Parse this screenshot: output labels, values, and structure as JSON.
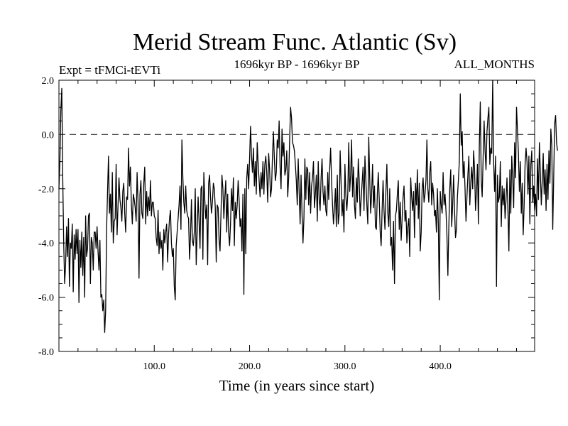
{
  "chart_data": {
    "type": "line",
    "title": "Merid Stream Func. Atlantic (Sv)",
    "left_label": "Expt = tFMCi-tEVTi",
    "center_label": "1696kyr BP - 1696kyr BP",
    "right_label": "ALL_MONTHS",
    "xlabel": "Time (in years since start)",
    "ylabel": "",
    "xlim": [
      0,
      499
    ],
    "ylim": [
      -8.0,
      2.0
    ],
    "x_ticks": [
      100,
      200,
      300,
      400
    ],
    "x_tick_labels": [
      "100.0",
      "200.0",
      "300.0",
      "400.0"
    ],
    "y_ticks": [
      2.0,
      0.0,
      -2.0,
      -4.0,
      -6.0,
      -8.0
    ],
    "y_tick_labels": [
      "2.0",
      "0.0",
      "-2.0",
      "-4.0",
      "-6.0",
      "-8.0"
    ],
    "reference_line": {
      "y": 0.0,
      "style": "dashed"
    },
    "series": [
      {
        "name": "Merid Stream Func. Atlantic",
        "x_start": 0,
        "x_step": 1,
        "values": [
          -2.0,
          -1.0,
          0.9,
          1.7,
          -1.6,
          -4.0,
          -5.5,
          -4.8,
          -3.4,
          -4.5,
          -3.1,
          -5.6,
          -4.0,
          -4.2,
          -3.3,
          -5.8,
          -3.7,
          -4.6,
          -3.5,
          -4.4,
          -3.5,
          -6.2,
          -3.9,
          -4.9,
          -3.6,
          -5.2,
          -3.8,
          -6.0,
          -3.0,
          -4.5,
          -4.2,
          -3.0,
          -2.9,
          -5.5,
          -3.8,
          -4.0,
          -5.0,
          -3.6,
          -3.6,
          -4.2,
          -3.4,
          -4.3,
          -5.0,
          -3.9,
          -6.0,
          -5.9,
          -6.5,
          -6.1,
          -7.3,
          -6.5,
          -3.5,
          -2.1,
          -0.8,
          -2.9,
          -2.2,
          -3.6,
          -1.4,
          -4.0,
          -3.2,
          -3.1,
          -1.1,
          -3.7,
          -2.6,
          -1.6,
          -2.4,
          -2.7,
          -3.2,
          -2.1,
          -1.8,
          -2.9,
          -3.6,
          -2.3,
          -2.4,
          -0.5,
          -1.9,
          -1.2,
          -2.6,
          -3.3,
          -2.2,
          -2.4,
          -2.7,
          -3.2,
          -1.4,
          -2.5,
          -5.3,
          -2.2,
          -1.7,
          -2.9,
          -3.1,
          -1.8,
          -1.2,
          -3.3,
          -2.1,
          -3.0,
          -2.3,
          -2.8,
          -1.7,
          -3.0,
          -2.5,
          -2.5,
          -3.0,
          -3.1,
          -3.8,
          -4.1,
          -2.8,
          -4.4,
          -3.6,
          -4.2,
          -3.9,
          -5.0,
          -3.5,
          -4.0,
          -3.6,
          -3.3,
          -4.7,
          -3.7,
          -3.1,
          -2.8,
          -4.0,
          -4.5,
          -4.2,
          -5.6,
          -6.1,
          -4.1,
          -3.6,
          -3.1,
          -2.6,
          -1.9,
          -3.5,
          -0.2,
          -1.6,
          -2.5,
          -2.9,
          -1.9,
          -2.8,
          -3.0,
          -3.1,
          -4.6,
          -3.8,
          -2.4,
          -3.9,
          -4.1,
          -3.6,
          -2.0,
          -4.8,
          -3.6,
          -2.3,
          -3.2,
          -4.2,
          -2.0,
          -1.9,
          -4.6,
          -1.4,
          -2.4,
          -3.1,
          -2.6,
          -4.8,
          -1.8,
          -1.5,
          -2.3,
          -2.9,
          -2.5,
          -1.8,
          -2.0,
          -2.7,
          -4.7,
          -2.6,
          -2.7,
          -3.9,
          -4.3,
          -2.9,
          -1.5,
          -2.0,
          -3.1,
          -2.3,
          -1.7,
          -3.6,
          -2.2,
          -3.6,
          -4.1,
          -3.3,
          -2.0,
          -2.8,
          -1.6,
          -4.1,
          -2.5,
          -3.1,
          -2.6,
          -1.7,
          -2.4,
          -3.4,
          -3.1,
          -4.3,
          -2.2,
          -5.9,
          -2.0,
          -4.4,
          -1.6,
          -1.1,
          -2.0,
          -0.9,
          0.3,
          -0.8,
          -1.4,
          -0.5,
          -1.9,
          -1.0,
          -2.2,
          -0.3,
          -1.1,
          -1.7,
          -2.3,
          -1.4,
          -2.0,
          -1.0,
          -2.2,
          -1.1,
          -0.8,
          -1.4,
          -2.5,
          -0.7,
          -1.3,
          -2.3,
          -2.0,
          -0.8,
          0.1,
          -0.9,
          -1.7,
          -1.4,
          -0.2,
          -0.5,
          0.5,
          -1.2,
          -2.0,
          0.2,
          -0.8,
          -0.3,
          -1.5,
          -1.3,
          -0.6,
          -2.3,
          -1.6,
          -0.2,
          1.0,
          0.6,
          -0.3,
          -0.4,
          -0.6,
          -1.1,
          -1.7,
          -2.6,
          -0.9,
          -2.1,
          -3.3,
          -1.5,
          -2.9,
          -4.0,
          -3.1,
          -0.9,
          -2.4,
          -1.2,
          -1.3,
          -2.6,
          -1.4,
          -2.9,
          -1.9,
          -1.6,
          -1.0,
          -2.7,
          -2.2,
          -1.5,
          -3.2,
          -1.0,
          -2.4,
          -2.8,
          -1.6,
          -0.9,
          -2.1,
          -2.6,
          -1.9,
          -2.8,
          -3.0,
          -1.4,
          -2.4,
          -1.3,
          -0.5,
          -1.7,
          -2.6,
          -3.3,
          -2.7,
          -2.0,
          -3.4,
          -1.5,
          -3.3,
          -2.9,
          -0.6,
          -1.8,
          -3.0,
          -2.4,
          -3.6,
          -1.1,
          -2.3,
          -2.8,
          -2.2,
          -0.3,
          -2.1,
          -1.5,
          -0.2,
          -2.3,
          -1.2,
          -2.6,
          -3.1,
          -1.6,
          -2.5,
          -0.9,
          -1.7,
          -3.0,
          -2.4,
          -1.8,
          -1.2,
          -2.8,
          -0.8,
          -1.7,
          -2.6,
          -3.3,
          -0.1,
          -1.6,
          -2.9,
          -2.2,
          -1.1,
          -2.7,
          -1.9,
          -3.4,
          -3.5,
          -2.2,
          -1.4,
          -2.4,
          -3.6,
          -4.1,
          -2.8,
          -1.7,
          -2.8,
          -3.5,
          -2.1,
          -1.1,
          -2.9,
          -3.4,
          -2.0,
          -4.1,
          -3.8,
          -5.0,
          -3.2,
          -5.5,
          -3.0,
          -2.8,
          -2.2,
          -1.7,
          -3.5,
          -2.5,
          -3.9,
          -3.1,
          -2.3,
          -1.9,
          -3.2,
          -2.8,
          -4.0,
          -3.4,
          -3.1,
          -4.5,
          -1.6,
          -2.3,
          -2.8,
          -2.1,
          -3.8,
          -1.8,
          -2.6,
          -1.3,
          -3.1,
          -1.8,
          -4.3,
          -3.6,
          -2.0,
          -1.6,
          -2.5,
          -2.2,
          -1.7,
          -0.2,
          -2.0,
          -2.5,
          -1.4,
          -1.0,
          -2.6,
          -1.8,
          -2.2,
          -3.0,
          -2.8,
          -3.6,
          -2.0,
          -3.3,
          -6.1,
          -2.1,
          -2.6,
          -2.9,
          -1.4,
          -2.6,
          -2.2,
          -2.8,
          -3.7,
          -5.2,
          -3.4,
          -2.0,
          -1.3,
          -3.4,
          -2.6,
          -1.5,
          -2.8,
          -3.8,
          -3.5,
          -2.3,
          -1.7,
          -1.0,
          1.5,
          -0.4,
          0.1,
          -1.6,
          -1.0,
          -2.0,
          -3.2,
          -2.3,
          -1.5,
          -0.8,
          -2.6,
          -1.8,
          -1.2,
          -2.0,
          -0.6,
          -1.3,
          -2.8,
          -2.1,
          -1.1,
          -3.3,
          -0.4,
          1.2,
          -1.7,
          -2.3,
          -0.8,
          0.5,
          -0.6,
          -1.3,
          0.1,
          0.6,
          1.0,
          -1.1,
          -0.5,
          -0.7,
          2.0,
          -1.0,
          -2.1,
          -0.8,
          -5.6,
          -1.5,
          -2.5,
          -2.3,
          -1.0,
          -3.4,
          -1.9,
          -2.6,
          -2.0,
          -3.1,
          -2.4,
          -1.6,
          -2.8,
          -4.3,
          -1.3,
          -2.9,
          -0.8,
          -1.6,
          -2.7,
          -0.3,
          -1.6,
          1.0,
          0.2,
          -0.7,
          -2.1,
          -1.0,
          -2.9,
          -1.8,
          -3.7,
          -2.6,
          -1.1,
          -0.5,
          -1.0,
          -2.2,
          -0.8,
          -3.3,
          -1.1,
          -0.6,
          -2.5,
          -1.9,
          -2.8,
          -2.2,
          -3.0,
          -0.9,
          -2.4,
          -0.3,
          -1.4,
          -2.6,
          -1.7,
          -0.7,
          -2.2,
          -1.3,
          -2.8,
          -1.1,
          -2.4,
          -0.6,
          -1.8,
          0.2,
          -0.4,
          -3.5,
          -1.6,
          0.4,
          0.7,
          -0.3,
          -0.6
        ]
      }
    ]
  }
}
